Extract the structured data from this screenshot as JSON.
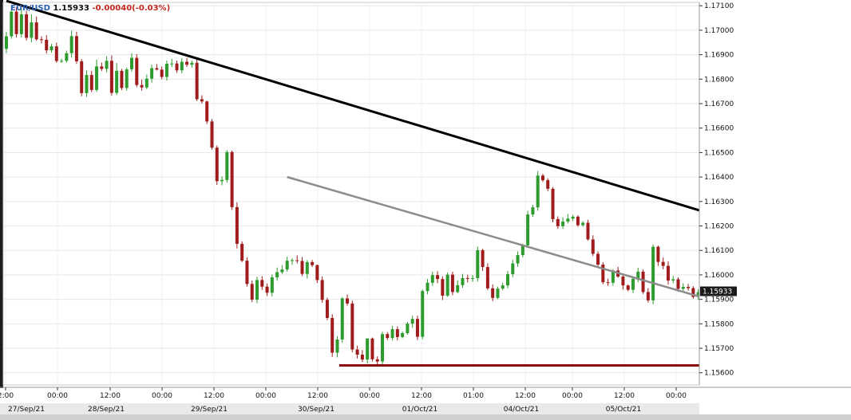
{
  "header": {
    "symbol": "EUR/USD",
    "price": "1.15933",
    "change": "-0.00040(-0.03%)"
  },
  "colors": {
    "bull": "#2e9b2e",
    "bear": "#a01c1c",
    "main_trendline": "#000000",
    "secondary_trendline": "#8c8c8c",
    "support_line": "#8b0b0b",
    "arrows": "#e02020",
    "price_marker_bg": "#1a1a1a"
  },
  "chart_data": {
    "type": "candlestick",
    "instrument": "EUR/USD",
    "interval_per_candle": "30m",
    "ylim": [
      1.1556,
      1.1714
    ],
    "y_ticks": [
      "1.17100",
      "1.17000",
      "1.16900",
      "1.16800",
      "1.16700",
      "1.16600",
      "1.16500",
      "1.16400",
      "1.16300",
      "1.16200",
      "1.16100",
      "1.16000",
      "1.15900",
      "1.15800",
      "1.15700",
      "1.15600"
    ],
    "x_ticks": [
      "2:00",
      "00:00",
      "12:00",
      "00:00",
      "12:00",
      "00:00",
      "12:00",
      "00:00",
      "12:00",
      "01:00",
      "12:00",
      "00:00",
      "12:00",
      "00:00"
    ],
    "date_labels": [
      "27/Sep/21",
      "28/Sep/21",
      "29/Sep/21",
      "30/Sep/21",
      "01/Oct/21",
      "04/Oct/21",
      "05/Oct/21"
    ],
    "last_price_marker": "1.15933",
    "trendlines": [
      {
        "name": "main",
        "from": [
          0,
          1.1712
        ],
        "to": [
          186,
          1.1596
        ]
      },
      {
        "name": "secondary",
        "from": [
          56,
          1.164
        ],
        "to": [
          186,
          1.1562
        ]
      }
    ],
    "support_level": 1.1563,
    "close": [
      1.16975,
      1.17076,
      1.16984,
      1.17065,
      1.16969,
      1.17032,
      1.16963,
      1.16961,
      1.16918,
      1.16934,
      1.16874,
      1.16875,
      1.16906,
      1.16976,
      1.16873,
      1.16743,
      1.16817,
      1.16756,
      1.16852,
      1.16842,
      1.16875,
      1.16744,
      1.16834,
      1.16764,
      1.1684,
      1.16887,
      1.16776,
      1.16766,
      1.16802,
      1.16845,
      1.16839,
      1.16809,
      1.16863,
      1.16864,
      1.16836,
      1.16871,
      1.16859,
      1.16867,
      1.16718,
      1.16709,
      1.16627,
      1.1652,
      1.16383,
      1.16388,
      1.16502,
      1.16277,
      1.16127,
      1.16058,
      1.15963,
      1.15899,
      1.15979,
      1.15952,
      1.15927,
      1.1599,
      1.16011,
      1.16022,
      1.16058,
      1.1606,
      1.16057,
      1.16004,
      1.16052,
      1.1604,
      1.15979,
      1.15898,
      1.15824,
      1.15682,
      1.15736,
      1.15904,
      1.15883,
      1.15695,
      1.15674,
      1.15654,
      1.1574,
      1.15655,
      1.15646,
      1.15758,
      1.15742,
      1.15778,
      1.15746,
      1.15762,
      1.15801,
      1.1582,
      1.15747,
      1.15934,
      1.15968,
      1.15999,
      1.15983,
      1.15915,
      1.16001,
      1.1593,
      1.15958,
      1.15987,
      1.15986,
      1.15987,
      1.16101,
      1.16032,
      1.15945,
      1.15906,
      1.15944,
      1.15957,
      1.16003,
      1.16047,
      1.16081,
      1.16121,
      1.16247,
      1.16276,
      1.16406,
      1.16387,
      1.16352,
      1.16228,
      1.16199,
      1.16218,
      1.1623,
      1.16238,
      1.16203,
      1.16213,
      1.16145,
      1.16086,
      1.16042,
      1.1597,
      1.15968,
      1.16018,
      1.15993,
      1.15957,
      1.15939,
      1.15984,
      1.16013,
      1.1593,
      1.15896,
      1.16115,
      1.16053,
      1.16037,
      1.15977,
      1.15982,
      1.15943,
      1.15951,
      1.15946,
      1.1591,
      1.15929,
      1.15933
    ],
    "open": [
      1.16924,
      1.16975,
      1.17076,
      1.16984,
      1.17065,
      1.16969,
      1.17032,
      1.16963,
      1.16961,
      1.16918,
      1.16934,
      1.16874,
      1.16875,
      1.16906,
      1.16976,
      1.16873,
      1.16743,
      1.16817,
      1.16756,
      1.16852,
      1.16842,
      1.16875,
      1.16744,
      1.16834,
      1.16764,
      1.1684,
      1.16887,
      1.16776,
      1.16766,
      1.16802,
      1.16845,
      1.16839,
      1.16809,
      1.16863,
      1.16864,
      1.16836,
      1.16871,
      1.16859,
      1.16867,
      1.16718,
      1.16709,
      1.16627,
      1.1652,
      1.16383,
      1.16388,
      1.16502,
      1.16277,
      1.16127,
      1.16058,
      1.15963,
      1.15899,
      1.15979,
      1.15952,
      1.15927,
      1.1599,
      1.16011,
      1.16022,
      1.16058,
      1.1606,
      1.16057,
      1.16004,
      1.16052,
      1.1604,
      1.15979,
      1.15898,
      1.15824,
      1.15682,
      1.15736,
      1.15904,
      1.15883,
      1.15695,
      1.15674,
      1.15654,
      1.1574,
      1.15655,
      1.15646,
      1.15758,
      1.15742,
      1.15778,
      1.15746,
      1.15762,
      1.15801,
      1.1582,
      1.15747,
      1.15934,
      1.15968,
      1.15999,
      1.15983,
      1.15915,
      1.16001,
      1.1593,
      1.15958,
      1.15987,
      1.15986,
      1.15987,
      1.16101,
      1.16032,
      1.15945,
      1.15906,
      1.15944,
      1.15957,
      1.16003,
      1.16047,
      1.16081,
      1.16121,
      1.16247,
      1.16276,
      1.16406,
      1.16387,
      1.16352,
      1.16228,
      1.16199,
      1.16218,
      1.1623,
      1.16238,
      1.16203,
      1.16213,
      1.16145,
      1.16086,
      1.16042,
      1.1597,
      1.15968,
      1.16018,
      1.15993,
      1.15957,
      1.15939,
      1.15984,
      1.16013,
      1.1593,
      1.15896,
      1.16115,
      1.16053,
      1.16037,
      1.15977,
      1.15982,
      1.15943,
      1.15951,
      1.15946,
      1.1591,
      1.15929
    ],
    "high": [
      1.16993,
      1.17095,
      1.17094,
      1.17089,
      1.17079,
      1.17065,
      1.17056,
      1.16975,
      1.1698,
      1.16944,
      1.16949,
      1.16884,
      1.16917,
      1.16998,
      1.16994,
      1.16882,
      1.16836,
      1.16834,
      1.1688,
      1.16868,
      1.16894,
      1.16897,
      1.16866,
      1.16842,
      1.16847,
      1.16906,
      1.16902,
      1.16798,
      1.16819,
      1.16859,
      1.16862,
      1.16852,
      1.16876,
      1.16883,
      1.16876,
      1.16886,
      1.16887,
      1.16876,
      1.16882,
      1.16734,
      1.16712,
      1.16637,
      1.16529,
      1.16403,
      1.1651,
      1.16508,
      1.16297,
      1.16137,
      1.16072,
      1.15977,
      1.15992,
      1.15995,
      1.15965,
      1.16002,
      1.1603,
      1.1604,
      1.16074,
      1.16068,
      1.1608,
      1.16073,
      1.1606,
      1.16061,
      1.16042,
      1.15994,
      1.15907,
      1.15839,
      1.15749,
      1.15909,
      1.1592,
      1.15895,
      1.15711,
      1.15693,
      1.15741,
      1.15744,
      1.15667,
      1.15768,
      1.15766,
      1.15792,
      1.1579,
      1.15769,
      1.15808,
      1.15833,
      1.15833,
      1.1594,
      1.15983,
      1.16013,
      1.16015,
      1.15994,
      1.1601,
      1.16013,
      1.15978,
      1.16004,
      1.16001,
      1.15999,
      1.16116,
      1.16107,
      1.16047,
      1.15961,
      1.15952,
      1.15968,
      1.16016,
      1.16061,
      1.16096,
      1.16127,
      1.16262,
      1.16287,
      1.16424,
      1.16413,
      1.16395,
      1.16359,
      1.16239,
      1.16235,
      1.16249,
      1.16245,
      1.16244,
      1.1622,
      1.16225,
      1.16162,
      1.16096,
      1.16052,
      1.15985,
      1.16023,
      1.16033,
      1.16003,
      1.15961,
      1.15994,
      1.16029,
      1.16022,
      1.15946,
      1.16124,
      1.1612,
      1.16071,
      1.16055,
      1.15995,
      1.1599,
      1.15966,
      1.15963,
      1.15954,
      1.15941,
      1.15944
    ],
    "low": [
      1.16906,
      1.16965,
      1.1697,
      1.1697,
      1.16958,
      1.16951,
      1.16957,
      1.16946,
      1.16905,
      1.16908,
      1.16867,
      1.16866,
      1.16867,
      1.16888,
      1.16862,
      1.1673,
      1.16728,
      1.16747,
      1.16748,
      1.16833,
      1.16828,
      1.16733,
      1.16735,
      1.16755,
      1.16753,
      1.1683,
      1.16767,
      1.16753,
      1.16759,
      1.16786,
      1.16835,
      1.16799,
      1.16794,
      1.16849,
      1.16826,
      1.16824,
      1.1685,
      1.16847,
      1.1671,
      1.167,
      1.16617,
      1.16512,
      1.16368,
      1.16366,
      1.16377,
      1.16266,
      1.16108,
      1.16052,
      1.15952,
      1.15889,
      1.15884,
      1.15939,
      1.15914,
      1.15912,
      1.15976,
      1.16004,
      1.16013,
      1.16041,
      1.16047,
      1.15995,
      1.15985,
      1.16032,
      1.15967,
      1.15886,
      1.15815,
      1.15665,
      1.15663,
      1.15722,
      1.15874,
      1.15684,
      1.15658,
      1.15644,
      1.15638,
      1.15646,
      1.15632,
      1.15632,
      1.15734,
      1.15732,
      1.15732,
      1.15741,
      1.15756,
      1.15784,
      1.15734,
      1.15737,
      1.15921,
      1.15955,
      1.15966,
      1.15897,
      1.1591,
      1.15917,
      1.15924,
      1.15947,
      1.15969,
      1.15972,
      1.15973,
      1.16016,
      1.15938,
      1.15893,
      1.15901,
      1.15937,
      1.15945,
      1.15991,
      1.16033,
      1.16072,
      1.16112,
      1.16237,
      1.16262,
      1.1638,
      1.16342,
      1.16215,
      1.16188,
      1.16188,
      1.1621,
      1.1622,
      1.16197,
      1.16197,
      1.1614,
      1.16077,
      1.16034,
      1.15962,
      1.15955,
      1.15956,
      1.15988,
      1.1594,
      1.15933,
      1.15926,
      1.1597,
      1.15922,
      1.15887,
      1.1588,
      1.16037,
      1.16023,
      1.1596,
      1.15966,
      1.15931,
      1.1593,
      1.15936,
      1.15903,
      1.15898,
      1.15916
    ]
  }
}
